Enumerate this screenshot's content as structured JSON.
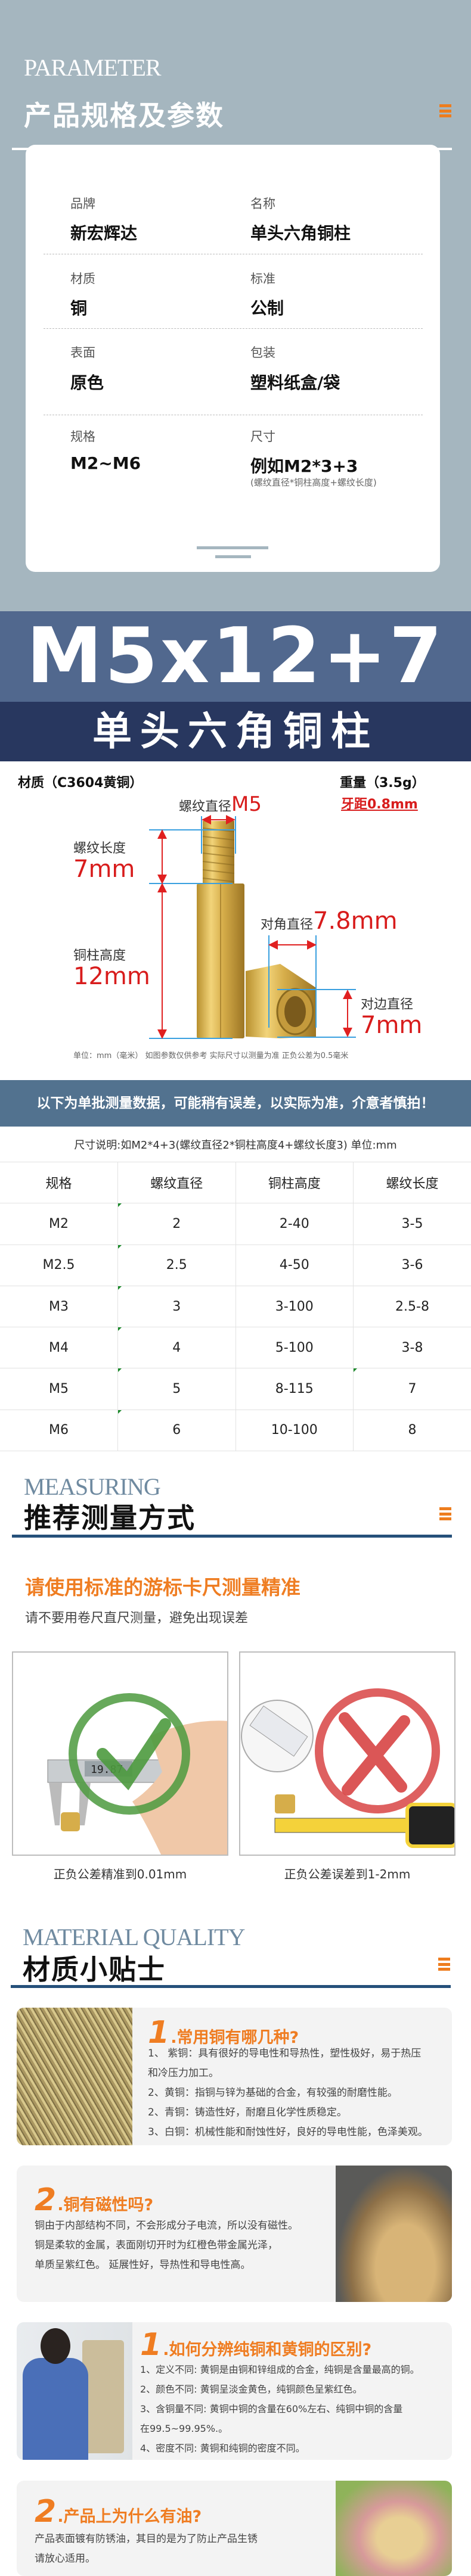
{
  "colors": {
    "accent_orange": "#ee7d1e",
    "header_bg": "#a5b6bf",
    "banner_blue": "#51688e",
    "banner_navy": "#28375f",
    "notice_bg": "#52728f",
    "rule_blue": "#25507a",
    "dimension_red": "#d81c1c",
    "dimension_blue": "#3aa0e0"
  },
  "parameter": {
    "eyebrow": "PARAMETER",
    "title": "产品规格及参数",
    "menu_icon": "hamburger-icon",
    "specs": [
      {
        "label": "品牌",
        "value": "新宏辉达"
      },
      {
        "label": "名称",
        "value": "单头六角铜柱"
      },
      {
        "label": "材质",
        "value": "铜"
      },
      {
        "label": "标准",
        "value": "公制"
      },
      {
        "label": "表面",
        "value": "原色"
      },
      {
        "label": "包装",
        "value": "塑料纸盒/袋"
      },
      {
        "label": "规格",
        "value": "M2~M6"
      },
      {
        "label": "尺寸",
        "value": "例如M2*3+3",
        "note": "(螺纹直径*铜柱高度+螺纹长度)"
      }
    ]
  },
  "banner": {
    "model": "M5x12+7",
    "name": "单头六角铜柱"
  },
  "diagram": {
    "material": "材质（C3604黄铜）",
    "weight": "重量（3.5g）",
    "pitch": "牙距0.8mm",
    "thread_diameter_label": "螺纹直径",
    "thread_diameter_value": "M5",
    "thread_length_label": "螺纹长度",
    "thread_length_value": "7mm",
    "pillar_height_label": "铜柱高度",
    "pillar_height_value": "12mm",
    "corner_diameter_label": "对角直径",
    "corner_diameter_value": "7.8mm",
    "flat_diameter_label": "对边直径",
    "flat_diameter_value": "7mm",
    "note": "单位：mm（毫米） 如图参数仅供参考 实际尺寸以测量为准 正负公差为0.5毫米"
  },
  "table": {
    "notice": "以下为单批测量数据，可能稍有误差，以实际为准，介意者慎拍！",
    "caption": "尺寸说明:如M2*4+3(螺纹直径2*铜柱高度4+螺纹长度3) 单位:mm",
    "headers": [
      "规格",
      "螺纹直径",
      "铜柱高度",
      "螺纹长度"
    ],
    "rows": [
      [
        "M2",
        "2",
        "2-40",
        "3-5"
      ],
      [
        "M2.5",
        "2.5",
        "4-50",
        "3-6"
      ],
      [
        "M3",
        "3",
        "3-100",
        "2.5-8"
      ],
      [
        "M4",
        "4",
        "5-100",
        "3-8"
      ],
      [
        "M5",
        "5",
        "8-115",
        "7"
      ],
      [
        "M6",
        "6",
        "10-100",
        "8"
      ]
    ]
  },
  "measuring": {
    "eyebrow": "MEASURING",
    "title": "推荐测量方式",
    "headline": "请使用标准的游标卡尺测量精准",
    "subtitle": "请不要用卷尺直尺测量，避免出现误差",
    "good_caption": "正负公差精准到0.01mm",
    "bad_caption": "正负公差误差到1-2mm",
    "caliper_reading": "19.87"
  },
  "material": {
    "eyebrow": "MATERIAL QUALITY",
    "title": "材质小贴士",
    "cards": [
      {
        "num": "1",
        "title": ".常用铜有哪几种?",
        "lines": [
          "1、 紫铜：具有很好的导电性和导热性，塑性极好，易于热压",
          "和冷压力加工。",
          "2、黄铜：指铜与锌为基础的合金，有较强的耐磨性能。",
          "2、青铜：铸造性好，耐磨且化学性质稳定。",
          "3、白铜：机械性能和耐蚀性好，良好的导电性能，色泽美观。"
        ]
      },
      {
        "num": "2",
        "title": ".铜有磁性吗?",
        "lines": [
          "铜由于内部结构不同，不会形成分子电流，所以没有磁性。",
          "铜是柔软的金属，表面刚切开时为红橙色带金属光泽，",
          "单质呈紫红色。 延展性好，导热性和导电性高。"
        ]
      },
      {
        "num": "1",
        "title": ".如何分辨纯铜和黄铜的区别?",
        "lines": [
          "1、定义不同: 黄铜是由铜和锌组成的合金，纯铜是含量最高的铜。",
          "2、颜色不同: 黄铜呈淡金黄色，纯铜颜色呈紫红色。",
          "3、含铜量不同: 黄铜中铜的含量在60%左右、纯铜中铜的含量",
          "在99.5~99.95%.。",
          "4、密度不同: 黄铜和纯铜的密度不同。"
        ]
      },
      {
        "num": "2",
        "title": ".产品上为什么有油?",
        "lines": [
          "产品表面镀有防锈油，其目的是为了防止产品生锈",
          "请放心适用。"
        ]
      }
    ]
  }
}
